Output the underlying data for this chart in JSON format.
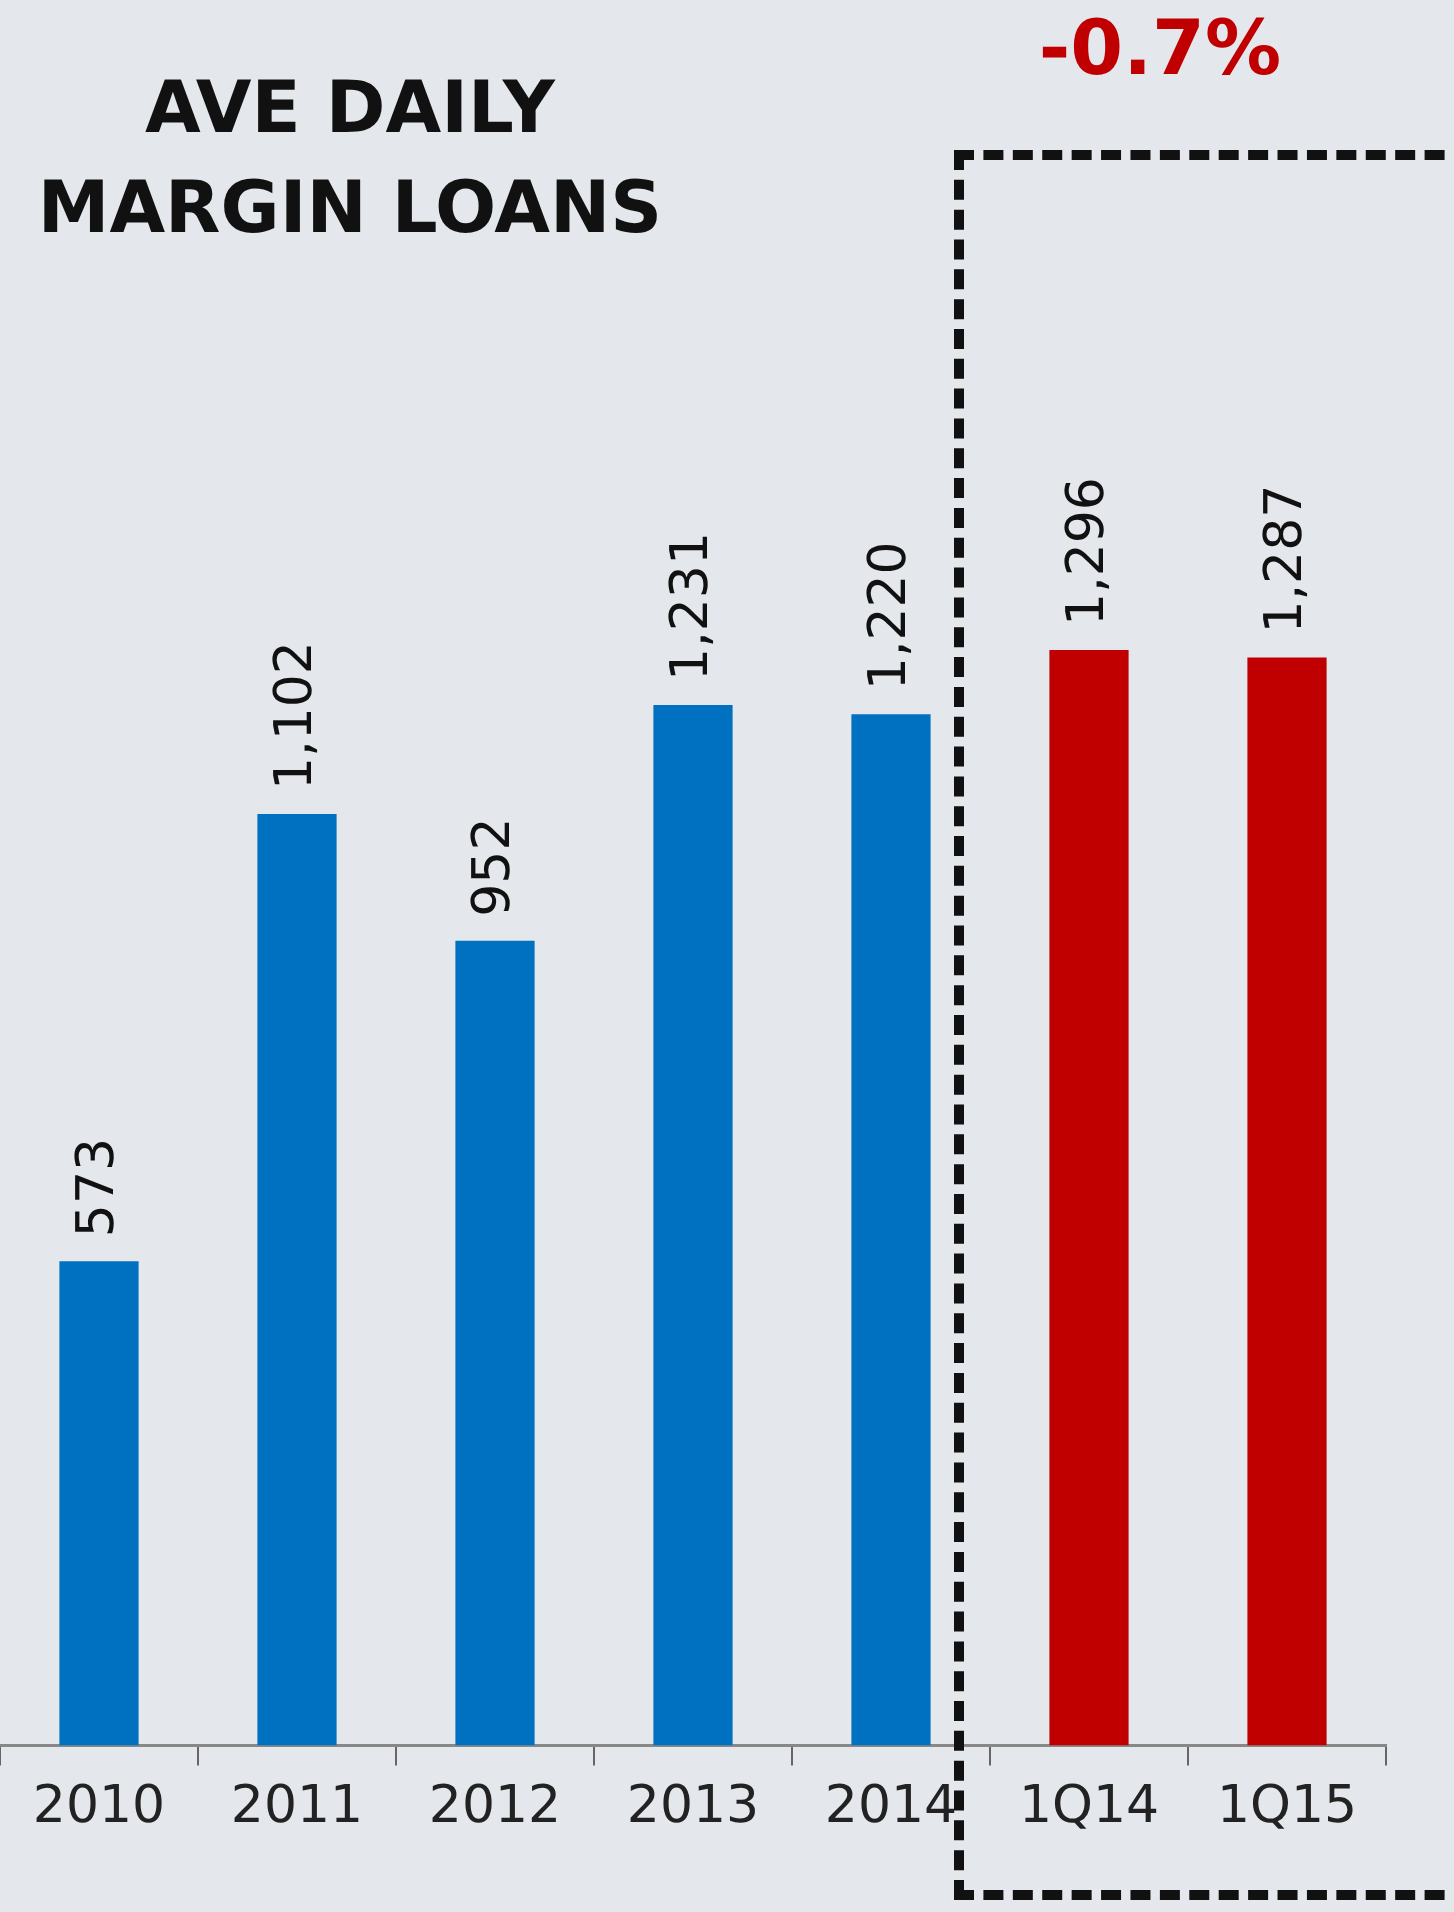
{
  "chart_data": {
    "type": "bar",
    "title": "AVE DAILY MARGIN LOANS",
    "categories": [
      "2010",
      "2011",
      "2012",
      "2013",
      "2014",
      "1Q14",
      "1Q15"
    ],
    "values": [
      573,
      1102,
      952,
      1231,
      1220,
      1296,
      1287
    ],
    "colors": [
      "#0070c0",
      "#0070c0",
      "#0070c0",
      "#0070c0",
      "#0070c0",
      "#c00000",
      "#c00000"
    ],
    "value_labels": [
      "573",
      "1,102",
      "952",
      "1,231",
      "1,220",
      "1,296",
      "1,287"
    ],
    "annotations": [
      "-0.7%"
    ],
    "grid": false,
    "legend": false
  }
}
